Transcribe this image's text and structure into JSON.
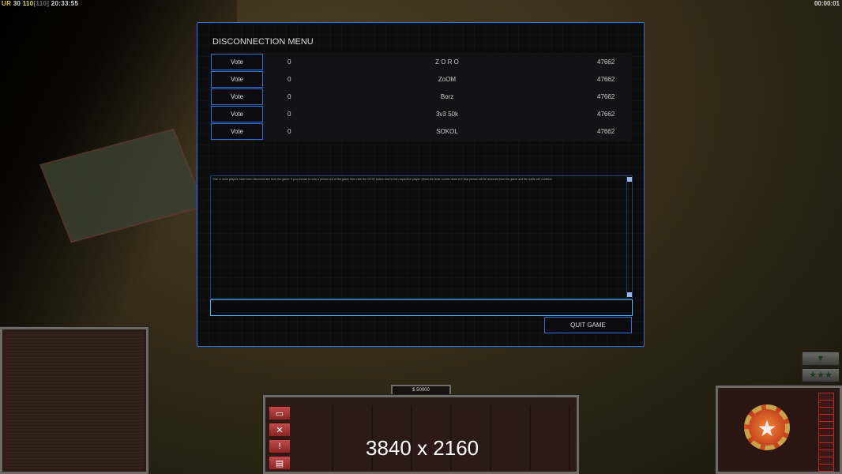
{
  "hud": {
    "faction": "UR",
    "units": "30",
    "power": "110",
    "power_max": "[110]",
    "time": "20:33:55",
    "game_timer": "00:00:01"
  },
  "dialog": {
    "title": "DISCONNECTION MENU",
    "players": [
      {
        "vote_label": "Vote",
        "votes": "0",
        "name": "Z O R O",
        "ping": "47662"
      },
      {
        "vote_label": "Vote",
        "votes": "0",
        "name": "ZoOM",
        "ping": "47662"
      },
      {
        "vote_label": "Vote",
        "votes": "0",
        "name": "Borz",
        "ping": "47662"
      },
      {
        "vote_label": "Vote",
        "votes": "0",
        "name": "3v3 50k",
        "ping": "47662"
      },
      {
        "vote_label": "Vote",
        "votes": "0",
        "name": "SOKOL",
        "ping": "47662"
      }
    ],
    "message": "One or more players have been disconnected from the game. If you choose to vote a person out of the game then click the VOTE button next to the respective player. When the timer counts down to 0 that person will be removed from the game and the battle will continue.",
    "chat_input": "",
    "quit_label": "QUIT GAME"
  },
  "control_bar": {
    "money": "$ 50000",
    "side_buttons": [
      "options-icon",
      "wrench-icon",
      "alert-icon",
      "chat-icon"
    ],
    "rank_stars": "★★★",
    "collapse": "▼"
  },
  "resolution_overlay": "3840 x 2160",
  "colors": {
    "accent": "#2f6fd6",
    "input_border": "#49b8f0",
    "faction_red": "#b52a2a"
  }
}
